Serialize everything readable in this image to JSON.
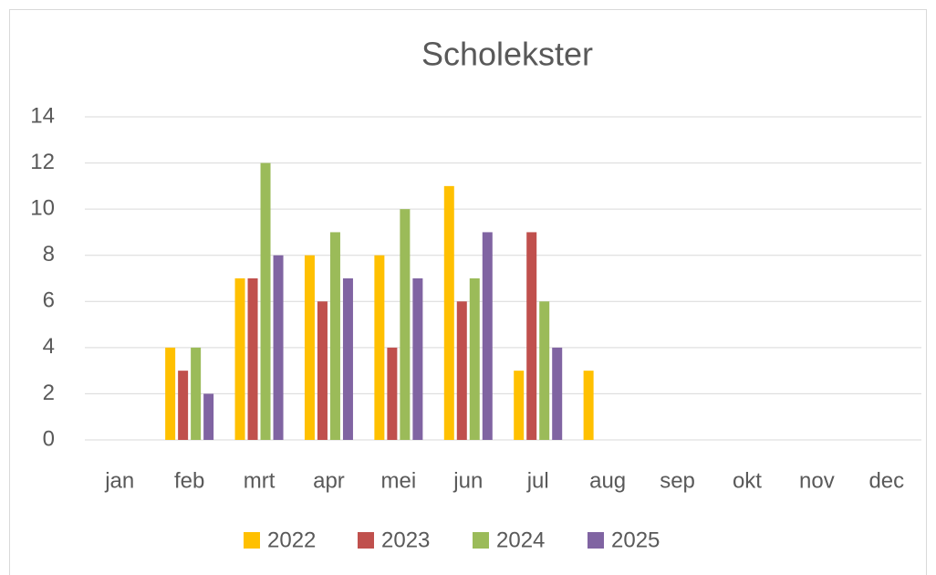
{
  "chart_data": {
    "type": "bar",
    "title": "Scholekster",
    "categories": [
      "jan",
      "feb",
      "mrt",
      "apr",
      "mei",
      "jun",
      "jul",
      "aug",
      "sep",
      "okt",
      "nov",
      "dec"
    ],
    "series": [
      {
        "name": "2022",
        "color": "#FFC000",
        "values": [
          null,
          4,
          7,
          8,
          8,
          11,
          3,
          3,
          null,
          null,
          null,
          null
        ]
      },
      {
        "name": "2023",
        "color": "#C0504D",
        "values": [
          null,
          3,
          7,
          6,
          4,
          6,
          9,
          null,
          null,
          null,
          null,
          null
        ]
      },
      {
        "name": "2024",
        "color": "#9BBB59",
        "values": [
          null,
          4,
          12,
          9,
          10,
          7,
          6,
          null,
          null,
          null,
          null,
          null
        ]
      },
      {
        "name": "2025",
        "color": "#8064A2",
        "values": [
          null,
          2,
          8,
          7,
          7,
          9,
          4,
          null,
          null,
          null,
          null,
          null
        ]
      }
    ],
    "ylim": [
      0,
      14
    ],
    "yticks": [
      0,
      2,
      4,
      6,
      8,
      10,
      12,
      14
    ],
    "grid": true,
    "legend": "bottom"
  }
}
